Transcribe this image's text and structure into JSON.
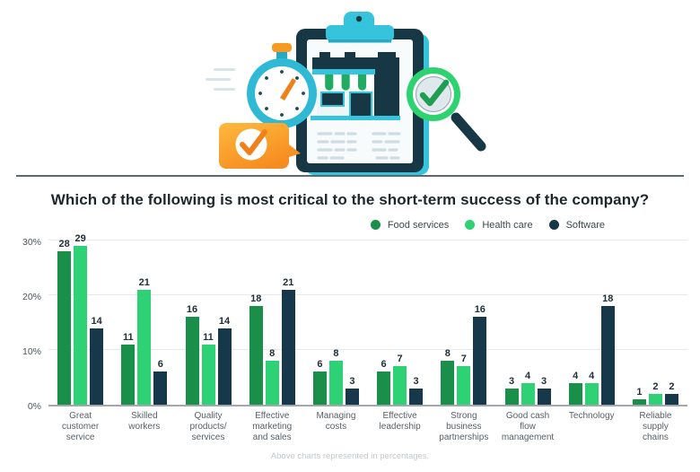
{
  "title": "Which of the following is most critical to the short-term success of the company?",
  "footnote": "Above charts represented in percentages.",
  "illustration": {
    "alt": "Clipboard with storefront checklist, stopwatch, orange check badge and magnifying glass with checkmark",
    "colors": {
      "cyan": "#35c4dc",
      "navy": "#173745",
      "bright_green": "#2ed173",
      "dark_green": "#1a8f4a",
      "orange": "#f59a23"
    }
  },
  "chart_data": {
    "type": "bar",
    "title": "Which of the following is most critical to the short-term success of the company?",
    "categories": [
      "Great customer service",
      "Skilled workers",
      "Quality products/ services",
      "Effective marketing and sales",
      "Managing costs",
      "Effective leadership",
      "Strong business partnerships",
      "Good cash flow management",
      "Technology",
      "Reliable supply chains"
    ],
    "category_label_lines": [
      [
        "Great",
        "customer",
        "service"
      ],
      [
        "Skilled",
        "workers"
      ],
      [
        "Quality",
        "products/",
        "services"
      ],
      [
        "Effective",
        "marketing",
        "and sales"
      ],
      [
        "Managing",
        "costs"
      ],
      [
        "Effective",
        "leadership"
      ],
      [
        "Strong",
        "business",
        "partnerships"
      ],
      [
        "Good cash",
        "flow",
        "management"
      ],
      [
        "Technology"
      ],
      [
        "Reliable",
        "supply",
        "chains"
      ]
    ],
    "series": [
      {
        "name": "Food services",
        "color": "#1a8f4a",
        "values": [
          28,
          11,
          16,
          18,
          6,
          6,
          8,
          3,
          4,
          1
        ]
      },
      {
        "name": "Health care",
        "color": "#2ed173",
        "values": [
          29,
          21,
          11,
          8,
          8,
          7,
          7,
          4,
          4,
          2
        ]
      },
      {
        "name": "Software",
        "color": "#16384a",
        "values": [
          14,
          6,
          14,
          21,
          3,
          3,
          16,
          3,
          18,
          2
        ]
      }
    ],
    "xlabel": "",
    "ylabel": "",
    "ylim": [
      0,
      30
    ],
    "y_ticks": [
      "0%",
      "10%",
      "20%",
      "30%"
    ],
    "grid": true,
    "legend_position": "top-right",
    "value_labels": true,
    "units": "percent"
  }
}
